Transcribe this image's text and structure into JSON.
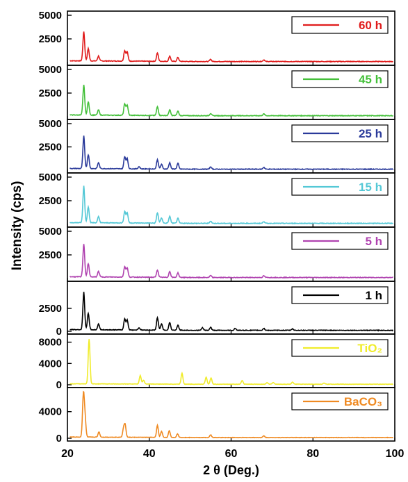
{
  "chart_data": {
    "type": "line",
    "ylabel": "Intensity (cps)",
    "xlabel": "2 θ (Deg.)",
    "xlim": [
      20,
      100
    ],
    "xticks": [
      20,
      40,
      60,
      80,
      100
    ],
    "grid": false,
    "legend_placement": "top-right of each panel",
    "panels": [
      {
        "series_name": "60 h",
        "color": "#e01b1b",
        "ylim": [
          0,
          5000
        ],
        "yticks": [
          {
            "v": 5000,
            "label": "5000"
          },
          {
            "v": 2500,
            "label": "2500"
          }
        ],
        "peaks": [
          [
            24.0,
            3100
          ],
          [
            25.1,
            1300
          ],
          [
            27.6,
            520
          ],
          [
            34.0,
            1100
          ],
          [
            34.6,
            1000
          ],
          [
            42.0,
            880
          ],
          [
            45.0,
            560
          ],
          [
            47.0,
            430
          ],
          [
            55.0,
            230
          ],
          [
            68.0,
            180
          ]
        ]
      },
      {
        "series_name": "45 h",
        "color": "#44c03a",
        "ylim": [
          0,
          5000
        ],
        "yticks": [
          {
            "v": 5000,
            "label": "5000"
          },
          {
            "v": 2500,
            "label": "2500"
          }
        ],
        "peaks": [
          [
            24.0,
            3200
          ],
          [
            25.1,
            1400
          ],
          [
            27.6,
            560
          ],
          [
            34.0,
            1200
          ],
          [
            34.6,
            1100
          ],
          [
            42.0,
            920
          ],
          [
            45.0,
            600
          ],
          [
            47.0,
            470
          ],
          [
            55.0,
            240
          ],
          [
            68.0,
            190
          ]
        ]
      },
      {
        "series_name": "25 h",
        "color": "#2a3a9a",
        "ylim": [
          0,
          5000
        ],
        "yticks": [
          {
            "v": 5000,
            "label": "5000"
          },
          {
            "v": 2500,
            "label": "2500"
          }
        ],
        "peaks": [
          [
            24.0,
            3500
          ],
          [
            25.1,
            1500
          ],
          [
            27.6,
            650
          ],
          [
            34.0,
            1300
          ],
          [
            34.6,
            1100
          ],
          [
            37.5,
            240
          ],
          [
            42.0,
            1000
          ],
          [
            43.0,
            500
          ],
          [
            45.0,
            680
          ],
          [
            47.0,
            620
          ],
          [
            55.0,
            250
          ],
          [
            68.0,
            200
          ]
        ]
      },
      {
        "series_name": "15 h",
        "color": "#54c8d6",
        "ylim": [
          0,
          5000
        ],
        "yticks": [
          {
            "v": 5000,
            "label": "5000"
          },
          {
            "v": 2500,
            "label": "2500"
          }
        ],
        "peaks": [
          [
            24.0,
            3900
          ],
          [
            25.1,
            1700
          ],
          [
            27.6,
            650
          ],
          [
            34.0,
            1200
          ],
          [
            34.6,
            1100
          ],
          [
            42.0,
            1100
          ],
          [
            43.0,
            560
          ],
          [
            45.0,
            720
          ],
          [
            47.0,
            520
          ],
          [
            55.0,
            240
          ],
          [
            68.0,
            200
          ]
        ]
      },
      {
        "series_name": "5 h",
        "color": "#b043b0",
        "ylim": [
          0,
          5000
        ],
        "yticks": [
          {
            "v": 5000,
            "label": "5000"
          },
          {
            "v": 2500,
            "label": "2500"
          }
        ],
        "peaks": [
          [
            24.0,
            3500
          ],
          [
            25.1,
            1400
          ],
          [
            27.6,
            600
          ],
          [
            34.0,
            1100
          ],
          [
            34.6,
            1000
          ],
          [
            42.0,
            780
          ],
          [
            45.0,
            620
          ],
          [
            47.0,
            480
          ],
          [
            55.0,
            210
          ],
          [
            68.0,
            180
          ]
        ]
      },
      {
        "series_name": "1 h",
        "color": "#000000",
        "ylim": [
          0,
          5000
        ],
        "yticks": [
          {
            "v": 2500,
            "label": "2500"
          },
          {
            "v": 0,
            "label": "0"
          }
        ],
        "peaks": [
          [
            24.0,
            4100
          ],
          [
            25.1,
            1800
          ],
          [
            27.6,
            640
          ],
          [
            34.0,
            1200
          ],
          [
            34.6,
            1100
          ],
          [
            37.5,
            240
          ],
          [
            42.0,
            1350
          ],
          [
            43.0,
            700
          ],
          [
            45.0,
            840
          ],
          [
            47.0,
            560
          ],
          [
            53.0,
            280
          ],
          [
            55.0,
            340
          ],
          [
            61.0,
            220
          ],
          [
            68.0,
            210
          ],
          [
            75.0,
            170
          ]
        ]
      },
      {
        "series_name": "TiO₂",
        "color": "#f0ec2a",
        "ylim": [
          0,
          9000
        ],
        "yticks": [
          {
            "v": 8000,
            "label": "8000"
          },
          {
            "v": 4000,
            "label": "4000"
          },
          {
            "v": 0,
            "label": "0"
          }
        ],
        "peaks": [
          [
            25.3,
            8400
          ],
          [
            37.8,
            1600
          ],
          [
            38.6,
            700
          ],
          [
            48.0,
            2100
          ],
          [
            53.9,
            1300
          ],
          [
            55.1,
            1200
          ],
          [
            62.7,
            700
          ],
          [
            68.8,
            300
          ],
          [
            70.3,
            350
          ],
          [
            75.0,
            400
          ],
          [
            82.7,
            200
          ]
        ]
      },
      {
        "series_name": "BaCO₃",
        "color": "#ef8a22",
        "ylim": [
          0,
          7000
        ],
        "yticks": [
          {
            "v": 4000,
            "label": "4000"
          },
          {
            "v": 0,
            "label": "0"
          }
        ],
        "peaks": [
          [
            23.9,
            6300
          ],
          [
            24.3,
            2800
          ],
          [
            27.7,
            800
          ],
          [
            33.7,
            1200
          ],
          [
            34.1,
            1800
          ],
          [
            42.0,
            1800
          ],
          [
            43.0,
            900
          ],
          [
            44.9,
            1000
          ],
          [
            46.9,
            550
          ],
          [
            55.0,
            400
          ],
          [
            68.0,
            250
          ]
        ]
      }
    ]
  }
}
